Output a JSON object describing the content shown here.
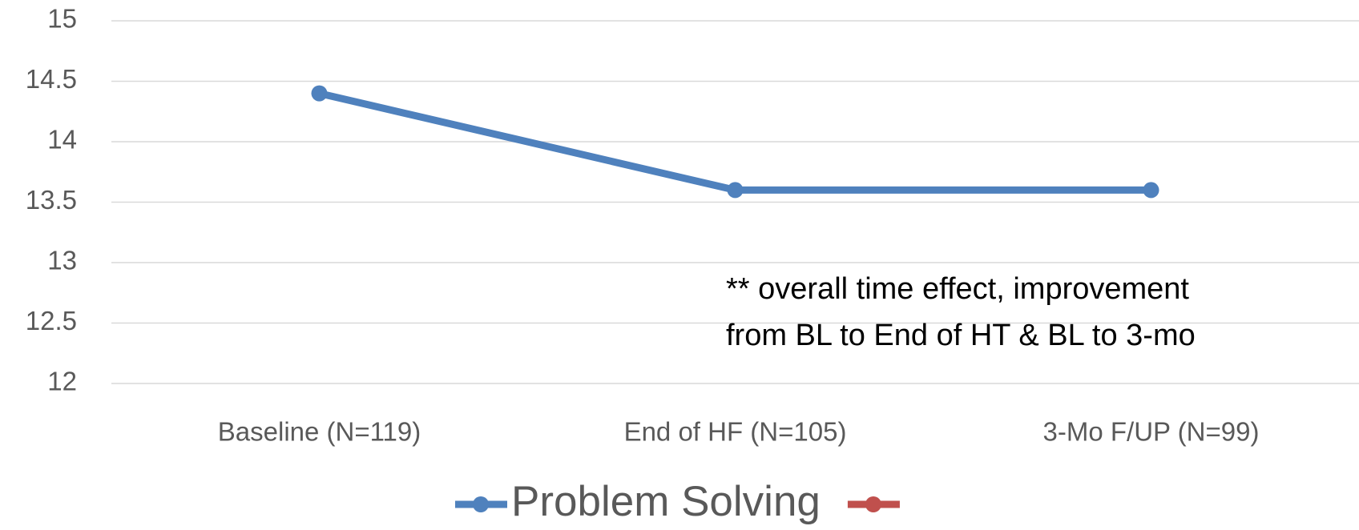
{
  "chart_data": {
    "type": "line",
    "categories": [
      "Baseline (N=119)",
      "End of HF (N=105)",
      "3-Mo F/UP (N=99)"
    ],
    "series": [
      {
        "name": "Problem Solving",
        "color": "#4f81bd",
        "values": [
          14.4,
          13.6,
          13.6
        ]
      },
      {
        "color": "#c0504d",
        "values": [
          null,
          null,
          null
        ]
      }
    ],
    "ylim": [
      12,
      15
    ],
    "yticks": [
      12,
      12.5,
      13,
      13.5,
      14,
      14.5,
      15
    ],
    "grid": true,
    "annotation": [
      "** overall time effect, improvement",
      "from BL to End of HT & BL to 3-mo"
    ],
    "legend": "bottom"
  }
}
